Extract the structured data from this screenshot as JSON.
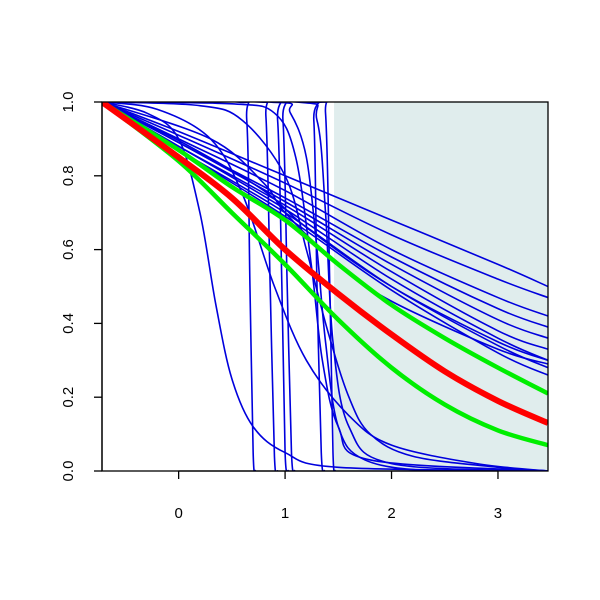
{
  "chart_data": {
    "type": "line",
    "title": "",
    "xlabel": "",
    "ylabel": "",
    "xlim": [
      -0.72,
      3.47
    ],
    "ylim": [
      0.0,
      1.0
    ],
    "x_ticks": [
      0,
      1,
      2,
      3
    ],
    "x_tick_labels": [
      "0",
      "1",
      "2",
      "3"
    ],
    "y_ticks": [
      0.0,
      0.2,
      0.4,
      0.6,
      0.8,
      1.0
    ],
    "y_tick_labels": [
      "0.0",
      "0.2",
      "0.4",
      "0.6",
      "0.8",
      "1.0"
    ],
    "grid": false,
    "legend": "none",
    "shaded_region": {
      "x_start": 1.46,
      "x_end": 3.47,
      "color": "#e0eded"
    },
    "colors": {
      "blue": "#0000dd",
      "red": "#ff0000",
      "green": "#00ee00",
      "axis": "#000000"
    },
    "series": [
      {
        "color": "blue",
        "width": 1.6,
        "points": [
          [
            -0.72,
            1.0
          ],
          [
            -0.3,
            0.97
          ],
          [
            0.0,
            0.9
          ],
          [
            0.2,
            0.7
          ],
          [
            0.35,
            0.45
          ],
          [
            0.5,
            0.25
          ],
          [
            0.7,
            0.12
          ],
          [
            1.0,
            0.05
          ],
          [
            1.5,
            0.01
          ],
          [
            3.47,
            0.0
          ]
        ]
      },
      {
        "color": "blue",
        "width": 1.6,
        "points": [
          [
            -0.72,
            1.0
          ],
          [
            -0.2,
            0.98
          ],
          [
            0.3,
            0.9
          ],
          [
            0.6,
            0.75
          ],
          [
            0.9,
            0.5
          ],
          [
            1.2,
            0.3
          ],
          [
            1.6,
            0.15
          ],
          [
            2.0,
            0.07
          ],
          [
            2.8,
            0.02
          ],
          [
            3.47,
            0.0
          ]
        ]
      },
      {
        "color": "blue",
        "width": 1.6,
        "points": [
          [
            -0.72,
            1.0
          ],
          [
            0.2,
            0.99
          ],
          [
            0.6,
            0.95
          ],
          [
            1.0,
            0.8
          ],
          [
            1.2,
            0.6
          ],
          [
            1.4,
            0.38
          ],
          [
            1.6,
            0.2
          ],
          [
            1.8,
            0.1
          ],
          [
            2.2,
            0.04
          ],
          [
            3.0,
            0.01
          ],
          [
            3.47,
            0.0
          ]
        ]
      },
      {
        "color": "blue",
        "width": 1.6,
        "points": [
          [
            -0.72,
            1.0
          ],
          [
            0.5,
            0.995
          ],
          [
            0.9,
            0.97
          ],
          [
            1.1,
            0.85
          ],
          [
            1.25,
            0.55
          ],
          [
            1.35,
            0.3
          ],
          [
            1.5,
            0.12
          ],
          [
            1.8,
            0.03
          ],
          [
            3.47,
            0.0
          ]
        ]
      },
      {
        "color": "blue",
        "width": 1.6,
        "points": [
          [
            -0.72,
            1.0
          ],
          [
            0.55,
            1.0
          ],
          [
            0.64,
            0.95
          ],
          [
            0.67,
            0.5
          ],
          [
            0.7,
            0.05
          ],
          [
            0.72,
            0.0
          ]
        ]
      },
      {
        "color": "blue",
        "width": 1.6,
        "points": [
          [
            -0.72,
            1.0
          ],
          [
            0.75,
            1.0
          ],
          [
            0.82,
            0.96
          ],
          [
            0.86,
            0.5
          ],
          [
            0.9,
            0.04
          ],
          [
            0.93,
            0.0
          ]
        ]
      },
      {
        "color": "blue",
        "width": 1.6,
        "points": [
          [
            -0.72,
            1.0
          ],
          [
            0.85,
            1.0
          ],
          [
            0.93,
            0.95
          ],
          [
            0.97,
            0.5
          ],
          [
            1.0,
            0.05
          ],
          [
            1.03,
            0.0
          ]
        ]
      },
      {
        "color": "blue",
        "width": 1.6,
        "points": [
          [
            -0.72,
            1.0
          ],
          [
            0.9,
            1.0
          ],
          [
            0.98,
            0.95
          ],
          [
            1.02,
            0.5
          ],
          [
            1.06,
            0.05
          ],
          [
            1.09,
            0.0
          ]
        ]
      },
      {
        "color": "blue",
        "width": 1.6,
        "points": [
          [
            -0.72,
            1.0
          ],
          [
            1.2,
            1.0
          ],
          [
            1.27,
            0.95
          ],
          [
            1.3,
            0.5
          ],
          [
            1.34,
            0.05
          ],
          [
            1.37,
            0.0
          ]
        ]
      },
      {
        "color": "blue",
        "width": 1.6,
        "points": [
          [
            -0.72,
            1.0
          ],
          [
            1.3,
            1.0
          ],
          [
            1.38,
            0.97
          ],
          [
            1.42,
            0.5
          ],
          [
            1.45,
            0.05
          ],
          [
            1.47,
            0.0
          ]
        ]
      },
      {
        "color": "blue",
        "width": 1.6,
        "points": [
          [
            -0.72,
            1.0
          ],
          [
            0.9,
            1.0
          ],
          [
            1.05,
            0.97
          ],
          [
            1.2,
            0.85
          ],
          [
            1.3,
            0.6
          ],
          [
            1.38,
            0.35
          ],
          [
            1.5,
            0.12
          ],
          [
            1.75,
            0.03
          ],
          [
            2.4,
            0.0
          ],
          [
            3.47,
            0.0
          ]
        ]
      },
      {
        "color": "blue",
        "width": 1.6,
        "points": [
          [
            -0.72,
            1.0
          ],
          [
            1.1,
            1.0
          ],
          [
            1.3,
            0.95
          ],
          [
            1.38,
            0.7
          ],
          [
            1.45,
            0.35
          ],
          [
            1.6,
            0.12
          ],
          [
            2.0,
            0.02
          ],
          [
            3.47,
            0.0
          ]
        ]
      },
      {
        "color": "blue",
        "width": 1.6,
        "points": [
          [
            -0.72,
            1.0
          ],
          [
            0.0,
            0.92
          ],
          [
            1.0,
            0.8
          ],
          [
            2.0,
            0.68
          ],
          [
            3.0,
            0.56
          ],
          [
            3.47,
            0.5
          ]
        ]
      },
      {
        "color": "blue",
        "width": 1.6,
        "points": [
          [
            -0.72,
            1.0
          ],
          [
            0.0,
            0.91
          ],
          [
            1.0,
            0.78
          ],
          [
            2.0,
            0.64
          ],
          [
            3.0,
            0.52
          ],
          [
            3.47,
            0.47
          ]
        ]
      },
      {
        "color": "blue",
        "width": 1.6,
        "points": [
          [
            -0.72,
            1.0
          ],
          [
            0.0,
            0.9
          ],
          [
            1.0,
            0.76
          ],
          [
            2.0,
            0.6
          ],
          [
            3.0,
            0.47
          ],
          [
            3.47,
            0.42
          ]
        ]
      },
      {
        "color": "blue",
        "width": 1.6,
        "points": [
          [
            -0.72,
            1.0
          ],
          [
            0.0,
            0.89
          ],
          [
            1.0,
            0.74
          ],
          [
            2.0,
            0.58
          ],
          [
            3.0,
            0.44
          ],
          [
            3.47,
            0.39
          ]
        ]
      },
      {
        "color": "blue",
        "width": 1.6,
        "points": [
          [
            -0.72,
            1.0
          ],
          [
            0.0,
            0.89
          ],
          [
            1.0,
            0.73
          ],
          [
            2.0,
            0.56
          ],
          [
            3.0,
            0.41
          ],
          [
            3.47,
            0.36
          ]
        ]
      },
      {
        "color": "blue",
        "width": 1.6,
        "points": [
          [
            -0.72,
            1.0
          ],
          [
            0.0,
            0.88
          ],
          [
            1.0,
            0.72
          ],
          [
            2.0,
            0.54
          ],
          [
            3.0,
            0.38
          ],
          [
            3.47,
            0.33
          ]
        ]
      },
      {
        "color": "blue",
        "width": 1.6,
        "points": [
          [
            -0.72,
            1.0
          ],
          [
            0.0,
            0.88
          ],
          [
            1.0,
            0.71
          ],
          [
            2.0,
            0.52
          ],
          [
            3.0,
            0.36
          ],
          [
            3.47,
            0.3
          ]
        ]
      },
      {
        "color": "blue",
        "width": 1.6,
        "points": [
          [
            -0.72,
            1.0
          ],
          [
            0.0,
            0.87
          ],
          [
            1.0,
            0.7
          ],
          [
            2.0,
            0.5
          ],
          [
            3.0,
            0.34
          ],
          [
            3.47,
            0.28
          ]
        ]
      },
      {
        "color": "blue",
        "width": 1.6,
        "points": [
          [
            -0.72,
            1.0
          ],
          [
            0.0,
            0.87
          ],
          [
            1.0,
            0.69
          ],
          [
            2.0,
            0.49
          ],
          [
            3.0,
            0.32
          ],
          [
            3.47,
            0.26
          ]
        ]
      },
      {
        "color": "blue",
        "width": 1.6,
        "points": [
          [
            -0.72,
            1.0
          ],
          [
            0.3,
            0.9
          ],
          [
            0.8,
            0.78
          ],
          [
            1.0,
            0.7
          ],
          [
            1.5,
            0.56
          ],
          [
            2.0,
            0.46
          ],
          [
            3.0,
            0.33
          ],
          [
            3.47,
            0.29
          ]
        ]
      },
      {
        "color": "blue",
        "width": 1.6,
        "points": [
          [
            -0.72,
            1.0
          ],
          [
            0.1,
            0.88
          ],
          [
            0.8,
            0.76
          ],
          [
            1.2,
            0.66
          ],
          [
            2.0,
            0.5
          ],
          [
            3.0,
            0.35
          ],
          [
            3.47,
            0.3
          ]
        ]
      },
      {
        "color": "green",
        "width": 4.5,
        "points": [
          [
            -0.72,
            1.0
          ],
          [
            0.0,
            0.87
          ],
          [
            0.5,
            0.77
          ],
          [
            1.0,
            0.68
          ],
          [
            1.5,
            0.56
          ],
          [
            2.0,
            0.45
          ],
          [
            2.5,
            0.36
          ],
          [
            3.0,
            0.28
          ],
          [
            3.47,
            0.21
          ]
        ]
      },
      {
        "color": "green",
        "width": 4.5,
        "points": [
          [
            -0.72,
            1.0
          ],
          [
            0.0,
            0.84
          ],
          [
            0.5,
            0.7
          ],
          [
            1.0,
            0.56
          ],
          [
            1.5,
            0.41
          ],
          [
            2.0,
            0.28
          ],
          [
            2.5,
            0.18
          ],
          [
            3.0,
            0.11
          ],
          [
            3.47,
            0.07
          ]
        ]
      },
      {
        "color": "red",
        "width": 6,
        "points": [
          [
            -0.72,
            1.0
          ],
          [
            0.0,
            0.85
          ],
          [
            0.5,
            0.74
          ],
          [
            1.0,
            0.6
          ],
          [
            1.5,
            0.48
          ],
          [
            2.0,
            0.37
          ],
          [
            2.5,
            0.27
          ],
          [
            3.0,
            0.19
          ],
          [
            3.47,
            0.13
          ]
        ]
      }
    ]
  }
}
